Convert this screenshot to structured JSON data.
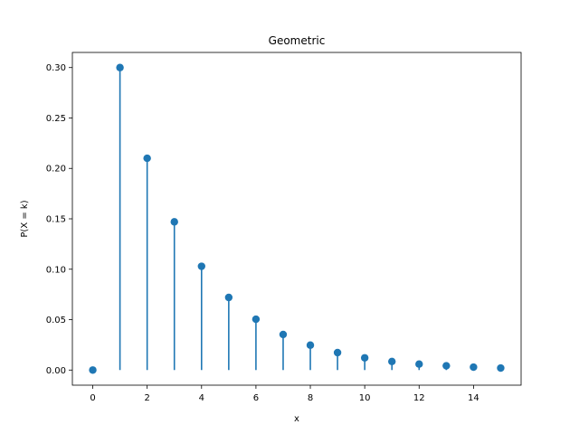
{
  "chart_data": {
    "type": "stem",
    "title": "Geometric",
    "xlabel": "x",
    "ylabel": "P(X = k)",
    "x": [
      0,
      1,
      2,
      3,
      4,
      5,
      6,
      7,
      8,
      9,
      10,
      11,
      12,
      13,
      14,
      15
    ],
    "series": [
      {
        "values": [
          0,
          0.3,
          0.21,
          0.147,
          0.1029,
          0.072,
          0.0504,
          0.0353,
          0.0247,
          0.0173,
          0.0121,
          0.0085,
          0.0059,
          0.0042,
          0.0029,
          0.002
        ],
        "color": "#1f77b4"
      }
    ],
    "xlim": [
      -0.75,
      15.75
    ],
    "ylim": [
      -0.015,
      0.315
    ],
    "xticks": [
      0,
      2,
      4,
      6,
      8,
      10,
      12,
      14
    ],
    "yticks": [
      0.0,
      0.05,
      0.1,
      0.15,
      0.2,
      0.25,
      0.3
    ],
    "ytick_labels": [
      "0.00",
      "0.05",
      "0.10",
      "0.15",
      "0.20",
      "0.25",
      "0.30"
    ],
    "grid": false,
    "legend": "none"
  }
}
